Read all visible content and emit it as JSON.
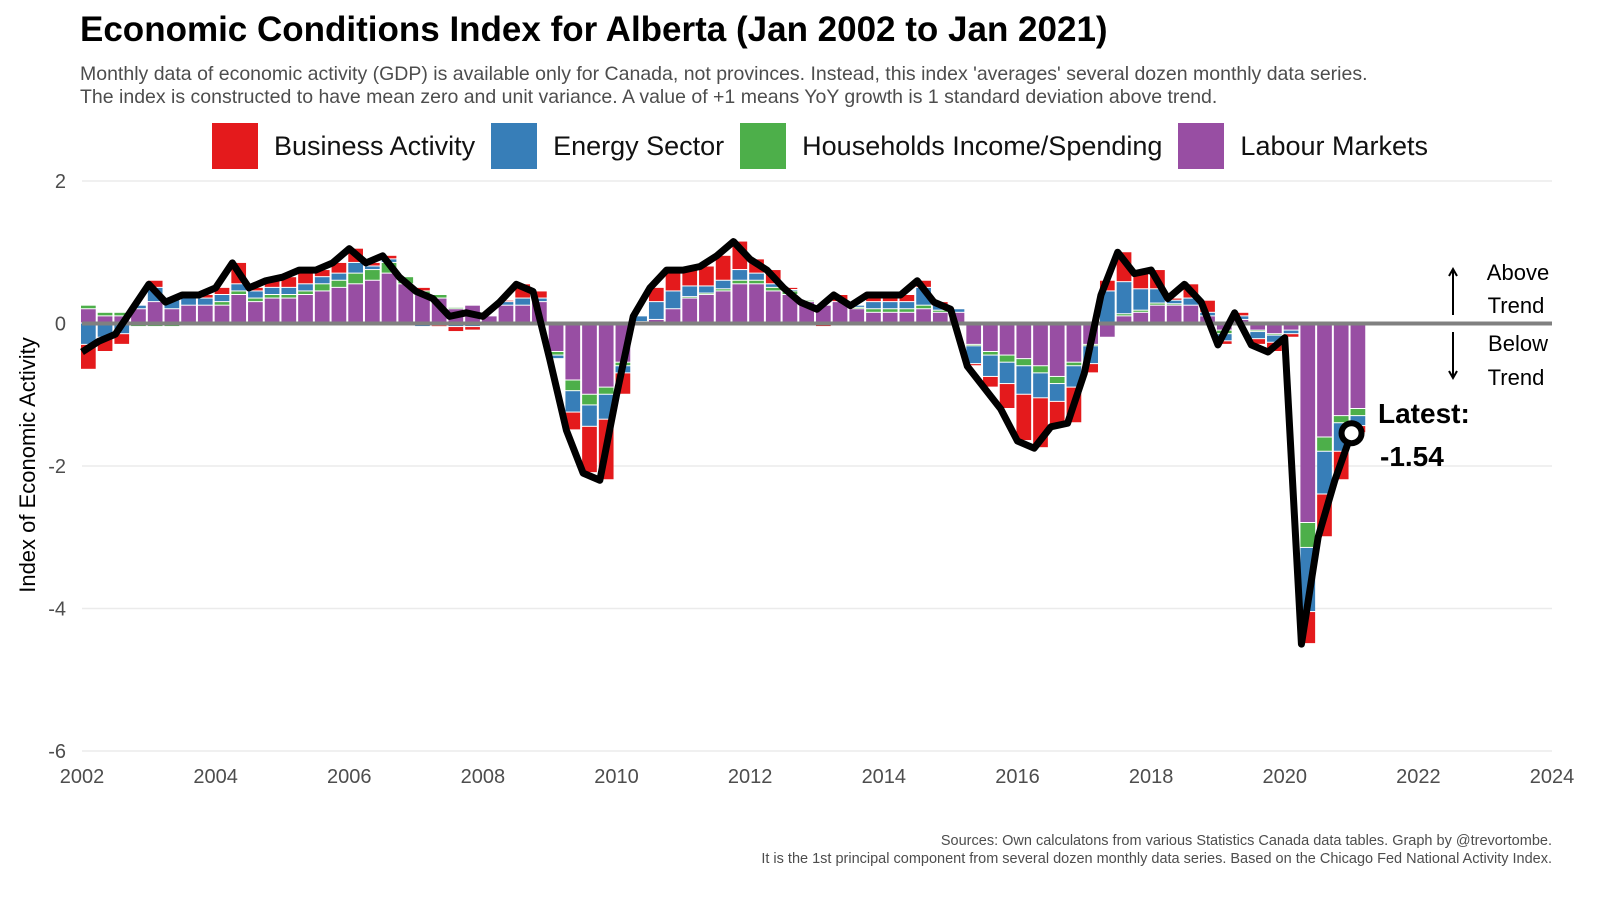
{
  "chart_data": {
    "type": "bar",
    "title": "Economic Conditions Index for Alberta (Jan 2002 to Jan 2021)",
    "subtitle": [
      "Monthly data of economic activity (GDP) is available only for Canada, not provinces. Instead, this index 'averages' several dozen monthly data series.",
      "The index is constructed to have mean zero and unit variance. A value of +1 means YoY growth is 1 standard deviation above trend."
    ],
    "xlabel": "",
    "ylabel": "Index of Economic Activity",
    "ylim": [
      -6,
      2
    ],
    "yticks": [
      2,
      0,
      -2,
      -4,
      -6
    ],
    "xlim": [
      2002,
      2024
    ],
    "xticks": [
      "2002",
      "2004",
      "2006",
      "2008",
      "2010",
      "2012",
      "2014",
      "2016",
      "2018",
      "2020",
      "2022",
      "2024"
    ],
    "grid": true,
    "legend_position": "top",
    "stacked": true,
    "colors": {
      "business": "#e41a1c",
      "energy": "#377eb8",
      "households": "#4daf4a",
      "labour": "#984ea3",
      "index_line": "#000000",
      "zero_line": "#808080"
    },
    "dates": [
      "2002-01",
      "2002-04",
      "2002-07",
      "2002-10",
      "2003-01",
      "2003-04",
      "2003-07",
      "2003-10",
      "2004-01",
      "2004-04",
      "2004-07",
      "2004-10",
      "2005-01",
      "2005-04",
      "2005-07",
      "2005-10",
      "2006-01",
      "2006-04",
      "2006-07",
      "2006-10",
      "2007-01",
      "2007-04",
      "2007-07",
      "2007-10",
      "2008-01",
      "2008-04",
      "2008-07",
      "2008-10",
      "2009-01",
      "2009-04",
      "2009-07",
      "2009-10",
      "2010-01",
      "2010-04",
      "2010-07",
      "2010-10",
      "2011-01",
      "2011-04",
      "2011-07",
      "2011-10",
      "2012-01",
      "2012-04",
      "2012-07",
      "2012-10",
      "2013-01",
      "2013-04",
      "2013-07",
      "2013-10",
      "2014-01",
      "2014-04",
      "2014-07",
      "2014-10",
      "2015-01",
      "2015-04",
      "2015-07",
      "2015-10",
      "2016-01",
      "2016-04",
      "2016-07",
      "2016-10",
      "2017-01",
      "2017-04",
      "2017-07",
      "2017-10",
      "2018-01",
      "2018-04",
      "2018-07",
      "2018-10",
      "2019-01",
      "2019-04",
      "2019-07",
      "2019-10",
      "2020-01",
      "2020-04",
      "2020-07",
      "2020-10",
      "2021-01"
    ],
    "index": [
      -0.4,
      -0.25,
      -0.15,
      0.2,
      0.55,
      0.3,
      0.4,
      0.4,
      0.5,
      0.85,
      0.5,
      0.6,
      0.65,
      0.75,
      0.75,
      0.85,
      1.05,
      0.85,
      0.95,
      0.65,
      0.45,
      0.35,
      0.1,
      0.15,
      0.1,
      0.3,
      0.55,
      0.45,
      -0.5,
      -1.5,
      -2.1,
      -2.2,
      -1.0,
      0.1,
      0.5,
      0.75,
      0.75,
      0.8,
      0.95,
      1.15,
      0.9,
      0.75,
      0.5,
      0.3,
      0.2,
      0.4,
      0.25,
      0.4,
      0.4,
      0.4,
      0.6,
      0.3,
      0.2,
      -0.6,
      -0.9,
      -1.2,
      -1.65,
      -1.75,
      -1.45,
      -1.4,
      -0.7,
      0.4,
      1.0,
      0.7,
      0.75,
      0.35,
      0.55,
      0.3,
      -0.3,
      0.15,
      -0.3,
      -0.4,
      -0.2,
      -4.5,
      -3.0,
      -2.2,
      -1.54
    ],
    "series": [
      {
        "name": "Labour Markets",
        "key": "labour",
        "values": [
          0.2,
          0.1,
          0.1,
          0.2,
          0.3,
          0.2,
          0.25,
          0.25,
          0.25,
          0.4,
          0.3,
          0.35,
          0.35,
          0.4,
          0.45,
          0.5,
          0.55,
          0.6,
          0.7,
          0.55,
          0.4,
          0.35,
          0.2,
          0.25,
          0.1,
          0.25,
          0.25,
          0.3,
          -0.4,
          -0.8,
          -1.0,
          -0.9,
          -0.55,
          0,
          0.05,
          0.2,
          0.35,
          0.4,
          0.45,
          0.55,
          0.55,
          0.45,
          0.4,
          0.3,
          0.25,
          0.3,
          0.2,
          0.15,
          0.15,
          0.15,
          0.2,
          0.15,
          0.15,
          -0.3,
          -0.4,
          -0.45,
          -0.5,
          -0.6,
          -0.75,
          -0.55,
          -0.3,
          -0.2,
          0.1,
          0.15,
          0.25,
          0.25,
          0.25,
          0.1,
          -0.1,
          0.05,
          -0.1,
          -0.15,
          -0.1,
          -2.8,
          -1.6,
          -1.3,
          -1.2
        ]
      },
      {
        "name": "Households Income/Spending",
        "key": "households",
        "values": [
          0.05,
          0.05,
          0.05,
          -0.05,
          -0.05,
          -0.05,
          0,
          0,
          0.05,
          0.05,
          0.05,
          0.05,
          0.05,
          0.05,
          0.1,
          0.1,
          0.15,
          0.15,
          0.15,
          0.1,
          0.05,
          0.05,
          0.02,
          0,
          0,
          -0.02,
          0,
          0,
          -0.05,
          -0.15,
          -0.15,
          -0.1,
          -0.05,
          0.02,
          0,
          0,
          0.02,
          0.02,
          0.03,
          0.05,
          0.05,
          0.05,
          0.05,
          0.02,
          0,
          0,
          0.02,
          0.05,
          0.05,
          0.05,
          0.05,
          0.03,
          0,
          -0.02,
          -0.05,
          -0.1,
          -0.1,
          -0.1,
          -0.1,
          -0.05,
          -0.02,
          0,
          0.03,
          0.03,
          0.03,
          0.02,
          0,
          -0.02,
          -0.05,
          0,
          -0.02,
          -0.02,
          0,
          -0.35,
          -0.2,
          -0.1,
          -0.1
        ]
      },
      {
        "name": "Energy Sector",
        "key": "energy",
        "values": [
          -0.3,
          -0.2,
          -0.15,
          0.05,
          0.2,
          0.15,
          0.15,
          0.1,
          0.1,
          0.1,
          0.1,
          0.1,
          0.1,
          0.1,
          0.1,
          0.1,
          0.15,
          0.05,
          0.05,
          0,
          -0.05,
          -0.03,
          -0.05,
          -0.05,
          0,
          0.05,
          0.1,
          0.05,
          -0.05,
          -0.3,
          -0.3,
          -0.35,
          -0.1,
          0.08,
          0.25,
          0.25,
          0.15,
          0.1,
          0.12,
          0.15,
          0.1,
          0.05,
          0.02,
          0,
          0,
          0,
          0.03,
          0.1,
          0.1,
          0.1,
          0.25,
          0.07,
          0.05,
          -0.25,
          -0.3,
          -0.3,
          -0.4,
          -0.35,
          -0.25,
          -0.3,
          -0.25,
          0.45,
          0.45,
          0.3,
          0.2,
          0.05,
          0.1,
          0.05,
          -0.1,
          0.05,
          -0.1,
          -0.1,
          -0.05,
          -0.9,
          -0.6,
          -0.4,
          -0.14
        ]
      },
      {
        "name": "Business Activity",
        "key": "business",
        "values": [
          -0.35,
          -0.2,
          -0.15,
          0,
          0.1,
          0,
          0,
          0.05,
          0.1,
          0.3,
          0.05,
          0.1,
          0.15,
          0.2,
          0.1,
          0.15,
          0.2,
          0.05,
          0.05,
          0,
          0.05,
          -0.02,
          -0.07,
          -0.05,
          0,
          0.02,
          0.2,
          0.1,
          0,
          -0.25,
          -0.65,
          -0.85,
          -0.3,
          0,
          0.2,
          0.3,
          0.23,
          0.28,
          0.35,
          0.4,
          0.2,
          0.2,
          0.03,
          -0.02,
          -0.05,
          0.1,
          0,
          0.1,
          0.1,
          0.1,
          0.1,
          0.05,
          0,
          -0.03,
          -0.15,
          -0.35,
          -0.65,
          -0.7,
          -0.35,
          -0.5,
          -0.13,
          0.15,
          0.42,
          0.22,
          0.27,
          0.03,
          0.2,
          0.17,
          -0.05,
          0.05,
          -0.08,
          -0.13,
          -0.05,
          -0.45,
          -0.6,
          -0.4,
          -0.1
        ]
      }
    ],
    "legend": [
      "Business Activity",
      "Energy Sector",
      "Households Income/Spending",
      "Labour Markets"
    ],
    "annotations": {
      "above": [
        "Above",
        "Trend"
      ],
      "below": [
        "Below",
        "Trend"
      ],
      "latest_label": "Latest:",
      "latest_value": "-1.54"
    },
    "sources": [
      "Sources: Own calculatons from various Statistics Canada data tables. Graph by @trevortombe.",
      "It is the 1st principal component from several dozen monthly data series. Based on the Chicago Fed National Activity Index."
    ]
  }
}
